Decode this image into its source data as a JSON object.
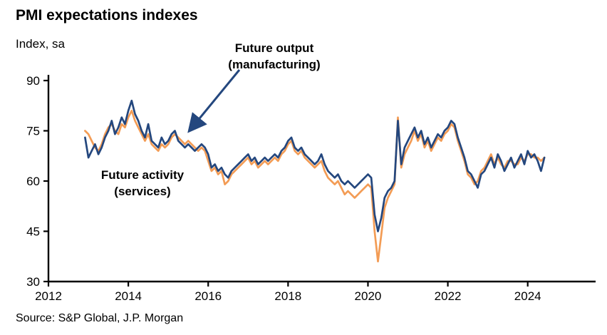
{
  "title": "PMI expectations indexes",
  "subtitle": "Index, sa",
  "source": "Source: S&P Global, J.P. Morgan",
  "colors": {
    "navy": "#24477E",
    "orange": "#F39C55",
    "axis": "#000000"
  },
  "annotations": {
    "manufacturing": {
      "line1": "Future output",
      "line2": "(manufacturing)"
    },
    "services": {
      "line1": "Future activity",
      "line2": "(services)"
    }
  },
  "chart_data": {
    "type": "line",
    "title": "PMI expectations indexes",
    "ylabel": "Index, sa",
    "x_start": 2012.9167,
    "x_step_years": 0.0833333,
    "xlim": [
      2012,
      2025.7
    ],
    "ylim": [
      30,
      90
    ],
    "yticks": [
      30,
      45,
      60,
      75,
      90
    ],
    "xticks": [
      2012,
      2014,
      2016,
      2018,
      2020,
      2022,
      2024
    ],
    "grid": false,
    "legend_position": "annotations-on-plot",
    "series": [
      {
        "name": "Future output (manufacturing)",
        "color": "#24477E",
        "values": [
          73,
          67,
          69,
          71,
          68,
          70,
          73,
          75,
          78,
          74,
          76,
          79,
          77,
          81,
          84,
          80,
          78,
          75,
          73,
          77,
          72,
          71,
          70,
          73,
          71,
          72,
          74,
          75,
          72,
          71,
          70,
          71,
          70,
          69,
          70,
          71,
          70,
          68,
          64,
          65,
          63,
          64,
          62,
          61,
          63,
          64,
          65,
          66,
          67,
          68,
          66,
          67,
          65,
          66,
          67,
          66,
          67,
          68,
          67,
          69,
          70,
          72,
          73,
          70,
          69,
          70,
          68,
          67,
          66,
          65,
          66,
          68,
          65,
          63,
          62,
          61,
          62,
          60,
          59,
          60,
          59,
          58,
          59,
          60,
          61,
          62,
          61,
          50,
          45,
          49,
          55,
          57,
          58,
          60,
          78,
          65,
          70,
          72,
          74,
          76,
          73,
          75,
          71,
          73,
          70,
          72,
          74,
          73,
          75,
          76,
          78,
          77,
          73,
          70,
          67,
          63,
          62,
          60,
          58,
          62,
          63,
          65,
          67,
          64,
          68,
          66,
          63,
          65,
          67,
          64,
          66,
          68,
          65,
          69,
          67,
          68,
          66,
          63,
          67
        ]
      },
      {
        "name": "Future activity (services)",
        "color": "#F39C55",
        "values": [
          75,
          74,
          72,
          70,
          69,
          71,
          74,
          76,
          77,
          75,
          74,
          77,
          76,
          79,
          81,
          78,
          76,
          74,
          72,
          74,
          71,
          70,
          69,
          71,
          70,
          71,
          73,
          74,
          73,
          72,
          71,
          72,
          71,
          70,
          69,
          70,
          69,
          66,
          63,
          64,
          62,
          63,
          59,
          60,
          62,
          63,
          64,
          65,
          66,
          67,
          65,
          66,
          64,
          65,
          66,
          65,
          66,
          67,
          66,
          68,
          69,
          71,
          72,
          69,
          68,
          69,
          67,
          66,
          65,
          64,
          65,
          66,
          63,
          61,
          60,
          59,
          60,
          58,
          56,
          57,
          56,
          55,
          56,
          57,
          58,
          59,
          58,
          45,
          36,
          44,
          52,
          55,
          57,
          59,
          79,
          64,
          68,
          70,
          72,
          75,
          72,
          74,
          70,
          72,
          69,
          71,
          73,
          72,
          74,
          75,
          77,
          76,
          72,
          69,
          66,
          62,
          61,
          59,
          60,
          63,
          64,
          66,
          68,
          65,
          67,
          65,
          64,
          66,
          66,
          65,
          65,
          67,
          66,
          68,
          68,
          67,
          67,
          66,
          67
        ]
      }
    ]
  }
}
